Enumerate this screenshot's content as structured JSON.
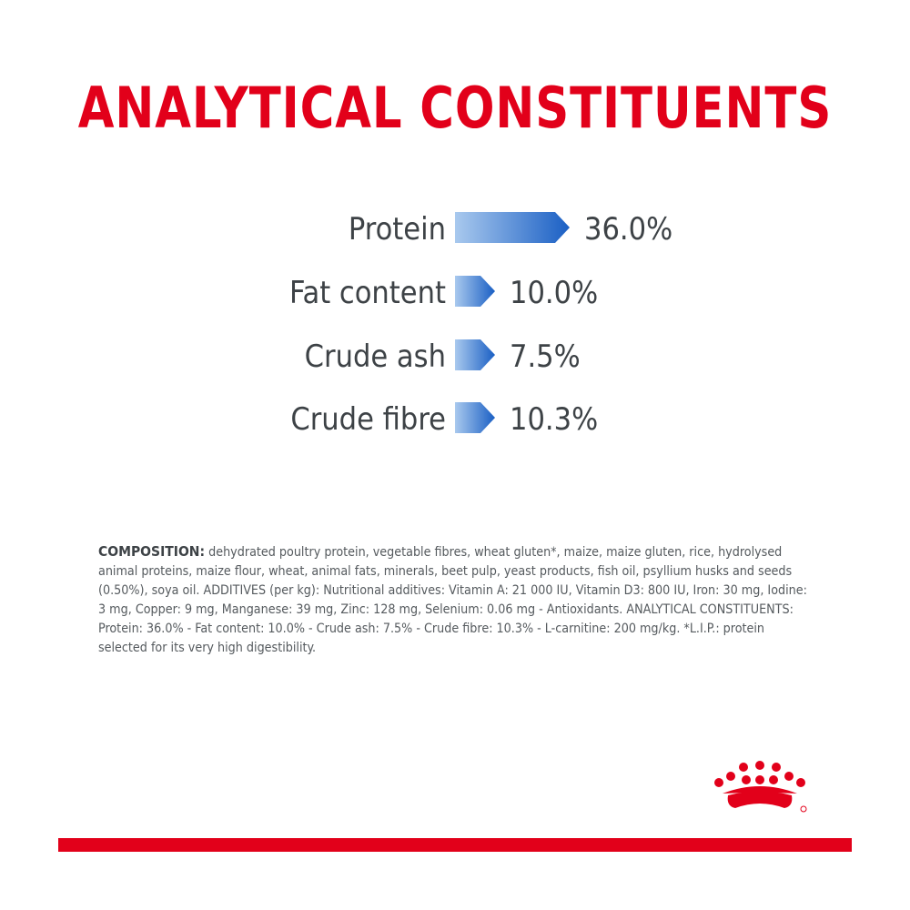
{
  "title": "ANALYTICAL CONSTITUENTS",
  "colors": {
    "brand_red": "#e2001a",
    "bar_blue_dark": "#1a5fc4",
    "bar_blue_light": "#a9c9ee",
    "label_gray": "#3d4246"
  },
  "chart_data": {
    "type": "bar",
    "categories": [
      "Protein",
      "Fat content",
      "Crude ash",
      "Crude fibre"
    ],
    "values": [
      36.0,
      10.0,
      7.5,
      10.3
    ],
    "value_labels": [
      "36.0%",
      "10.0%",
      "7.5%",
      "10.3%"
    ],
    "orientation": "horizontal",
    "title": "ANALYTICAL CONSTITUENTS",
    "grid": false,
    "legend": "none"
  },
  "composition": {
    "lead": "COMPOSITION:",
    "text": "dehydrated poultry protein, vegetable fibres, wheat gluten*, maize, maize gluten, rice, hydrolysed animal proteins, maize flour, wheat, animal fats, minerals, beet pulp, yeast products, fish oil, psyllium husks and seeds (0.50%), soya oil. ADDITIVES (per kg): Nutritional additives: Vitamin A: 21 000 IU, Vitamin D3: 800 IU, Iron: 30 mg, Iodine: 3 mg, Copper: 9 mg, Manganese: 39 mg, Zinc: 128 mg, Selenium: 0.06 mg - Antioxidants. ANALYTICAL CONSTITUENTS: Protein: 36.0% - Fat content: 10.0% - Crude ash: 7.5% - Crude fibre: 10.3% - L-carnitine: 200 mg/kg. *L.I.P.: protein selected for its very high digestibility."
  },
  "logo": {
    "icon": "royal-crown-icon"
  }
}
